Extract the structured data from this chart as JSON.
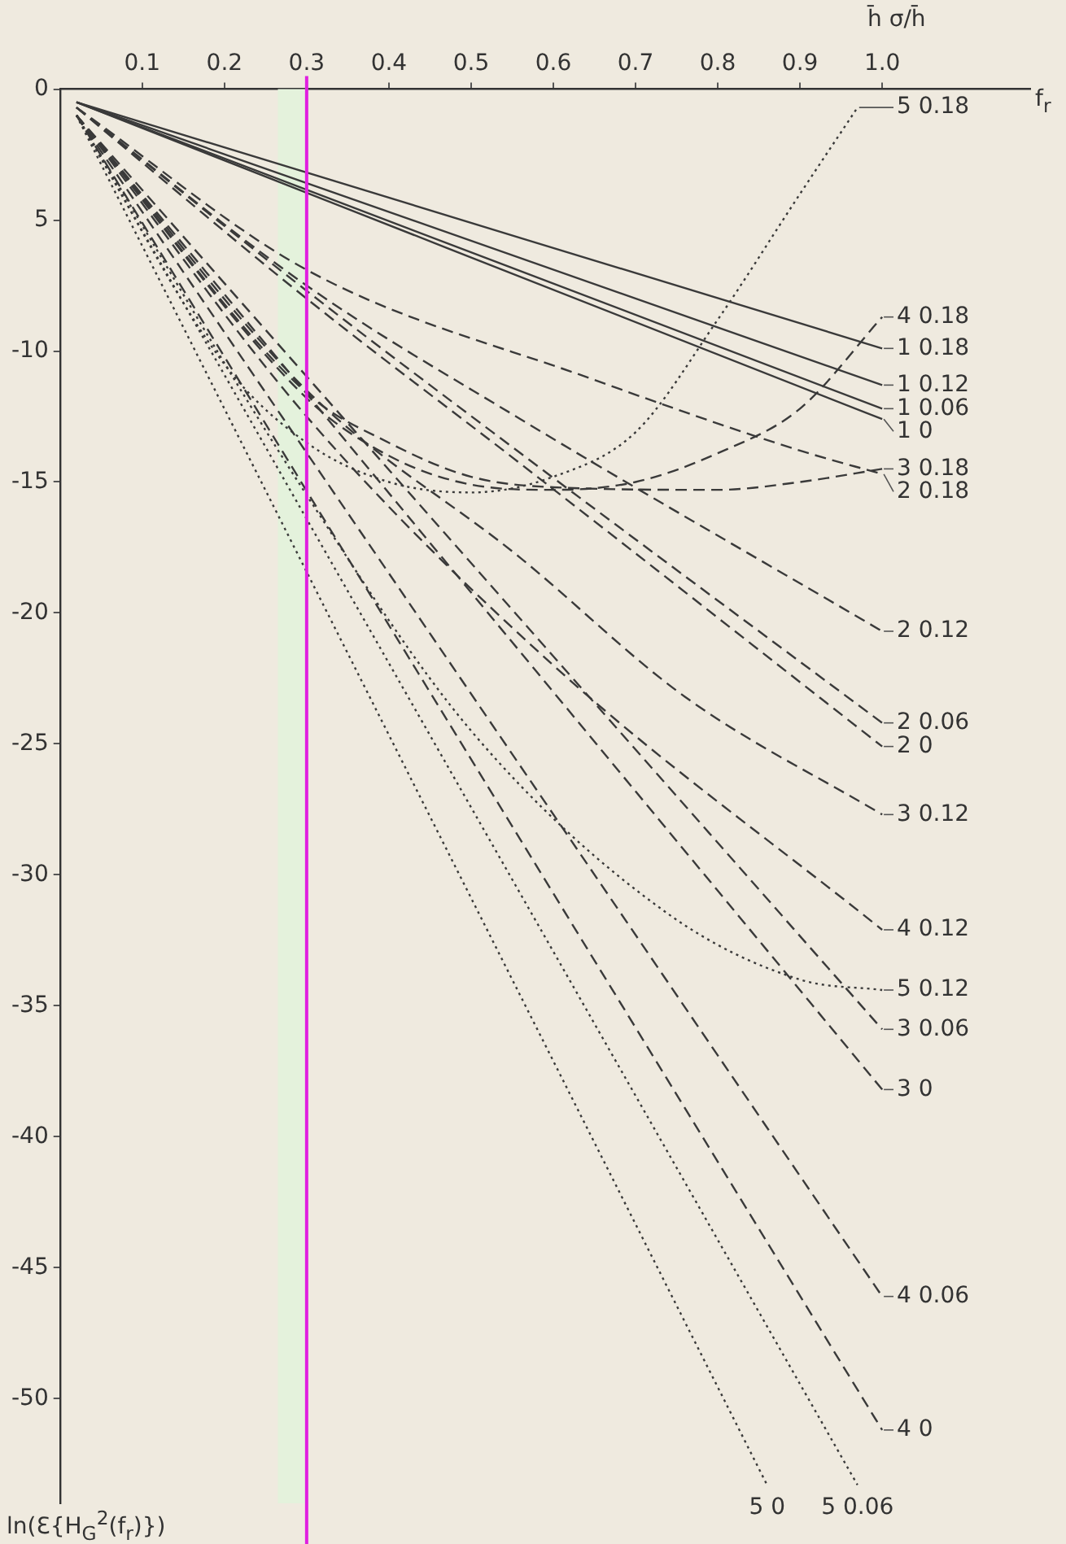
{
  "chart_data": {
    "type": "line",
    "xlabel": "f$_{r}$",
    "ylabel": "ln(Ɛ{H$_{G}$$^{2}$(f$_{r}$)})",
    "legend_title": "h̄   σ/h̄",
    "xlim": [
      0,
      1.18
    ],
    "ylim": [
      -54,
      0
    ],
    "xticks": [
      0.1,
      0.2,
      0.3,
      0.4,
      0.5,
      0.6,
      0.7,
      0.8,
      0.9,
      {
        "value": 1,
        "label": "1.0"
      }
    ],
    "yticks": [
      {
        "value": 0,
        "label": "0"
      },
      {
        "value": -5,
        "label": "5"
      },
      -10,
      -15,
      -20,
      -25,
      -30,
      -35,
      -40,
      -45,
      -50
    ],
    "grid": false,
    "legend": false,
    "marker": "none",
    "ref_lines": [
      {
        "axis": "x",
        "value": 0.3,
        "color": "#e020e0"
      }
    ],
    "bands": [
      {
        "axis": "x",
        "from": 0.265,
        "to": 0.3,
        "color": "#e4f2dc"
      }
    ],
    "series": [
      {
        "name": "5 0.18",
        "color": "#3a3a3a",
        "line_style": "dotted",
        "x": [
          0.02,
          0.2,
          0.3,
          0.4,
          0.5,
          0.6,
          0.7,
          0.8,
          0.9,
          0.97
        ],
        "values": [
          -1,
          -10.5,
          -13.5,
          -15,
          -15.4,
          -14.8,
          -13.1,
          -8.8,
          -4,
          -0.7
        ]
      },
      {
        "name": "4 0.18",
        "color": "#3a3a3a",
        "line_style": "dashed",
        "x": [
          0.02,
          0.3,
          0.4,
          0.5,
          0.6,
          0.7,
          0.8,
          0.9,
          1.0
        ],
        "values": [
          -1,
          -11.8,
          -14,
          -15.1,
          -15.3,
          -15,
          -13.9,
          -12.2,
          -8.7
        ]
      },
      {
        "name": "1 0.18",
        "color": "#3a3a3a",
        "line_style": "solid",
        "x": [
          0.02,
          1.0
        ],
        "values": [
          -0.5,
          -9.9
        ]
      },
      {
        "name": "1 0.12",
        "color": "#3a3a3a",
        "line_style": "solid",
        "x": [
          0.02,
          1.0
        ],
        "values": [
          -0.5,
          -11.3
        ]
      },
      {
        "name": "1 0.06",
        "color": "#3a3a3a",
        "line_style": "solid",
        "x": [
          0.02,
          1.0
        ],
        "values": [
          -0.5,
          -12.2
        ]
      },
      {
        "name": "1 0",
        "color": "#3a3a3a",
        "line_style": "solid",
        "x": [
          0.02,
          1.0
        ],
        "values": [
          -0.5,
          -12.6
        ]
      },
      {
        "name": "3 0.18",
        "color": "#3a3a3a",
        "line_style": "dashed",
        "x": [
          0.02,
          0.3,
          0.4,
          0.5,
          0.6,
          0.8,
          0.9,
          1.0
        ],
        "values": [
          -1,
          -11.6,
          -13.5,
          -14.8,
          -15.2,
          -15.3,
          -15,
          -14.5
        ]
      },
      {
        "name": "2 0.18",
        "color": "#3a3a3a",
        "line_style": "dashed",
        "x": [
          0.02,
          0.3,
          0.65,
          0.9,
          1.0
        ],
        "values": [
          -0.7,
          -6.9,
          -11.1,
          -13.8,
          -14.7
        ]
      },
      {
        "name": "2 0.12",
        "color": "#3a3a3a",
        "line_style": "dashed",
        "x": [
          0.02,
          0.3,
          0.56,
          1.0
        ],
        "values": [
          -0.7,
          -7.5,
          -12.6,
          -20.7
        ]
      },
      {
        "name": "2 0.06",
        "color": "#3a3a3a",
        "line_style": "dashed",
        "x": [
          0.02,
          0.3,
          0.56,
          1.0
        ],
        "values": [
          -0.7,
          -7.7,
          -13.9,
          -24.2
        ]
      },
      {
        "name": "2 0",
        "color": "#3a3a3a",
        "line_style": "dashed",
        "x": [
          0.02,
          0.3,
          0.56,
          1.0
        ],
        "values": [
          -0.7,
          -8,
          -14.3,
          -25.1
        ]
      },
      {
        "name": "3 0.12",
        "color": "#3a3a3a",
        "line_style": "dashed",
        "x": [
          0.02,
          0.3,
          0.56,
          0.76,
          1.0
        ],
        "values": [
          -1,
          -11.5,
          -17.9,
          -23.2,
          -27.7
        ]
      },
      {
        "name": "4 0.12",
        "color": "#3a3a3a",
        "line_style": "dashed",
        "x": [
          0.02,
          0.3,
          0.6,
          1.0
        ],
        "values": [
          -1,
          -12.5,
          -22,
          -32.1
        ]
      },
      {
        "name": "5 0.12",
        "color": "#3a3a3a",
        "line_style": "dotted",
        "x": [
          0.02,
          0.3,
          0.5,
          0.74,
          0.9,
          1.0
        ],
        "values": [
          -1,
          -15.5,
          -24.5,
          -31.5,
          -34,
          -34.4
        ]
      },
      {
        "name": "3 0.06",
        "color": "#3a3a3a",
        "line_style": "dashed",
        "x": [
          0.02,
          1.0
        ],
        "values": [
          -1,
          -35.9
        ]
      },
      {
        "name": "3 0",
        "color": "#3a3a3a",
        "line_style": "dashed",
        "x": [
          0.02,
          1.0
        ],
        "values": [
          -1,
          -38.2
        ]
      },
      {
        "name": "4 0.06",
        "color": "#3a3a3a",
        "line_style": "dashed",
        "x": [
          0.02,
          1.0
        ],
        "values": [
          -1,
          -46.1
        ]
      },
      {
        "name": "4 0",
        "color": "#3a3a3a",
        "line_style": "dashed",
        "x": [
          0.02,
          1.0
        ],
        "values": [
          -1,
          -51.2
        ]
      },
      {
        "name": "5 0",
        "color": "#3a3a3a",
        "line_style": "dotted",
        "x": [
          0.02,
          0.86
        ],
        "values": [
          -1,
          -53.3
        ]
      },
      {
        "name": "5 0.06",
        "color": "#3a3a3a",
        "line_style": "dotted",
        "x": [
          0.02,
          0.97
        ],
        "values": [
          -1,
          -53.3
        ]
      }
    ]
  }
}
